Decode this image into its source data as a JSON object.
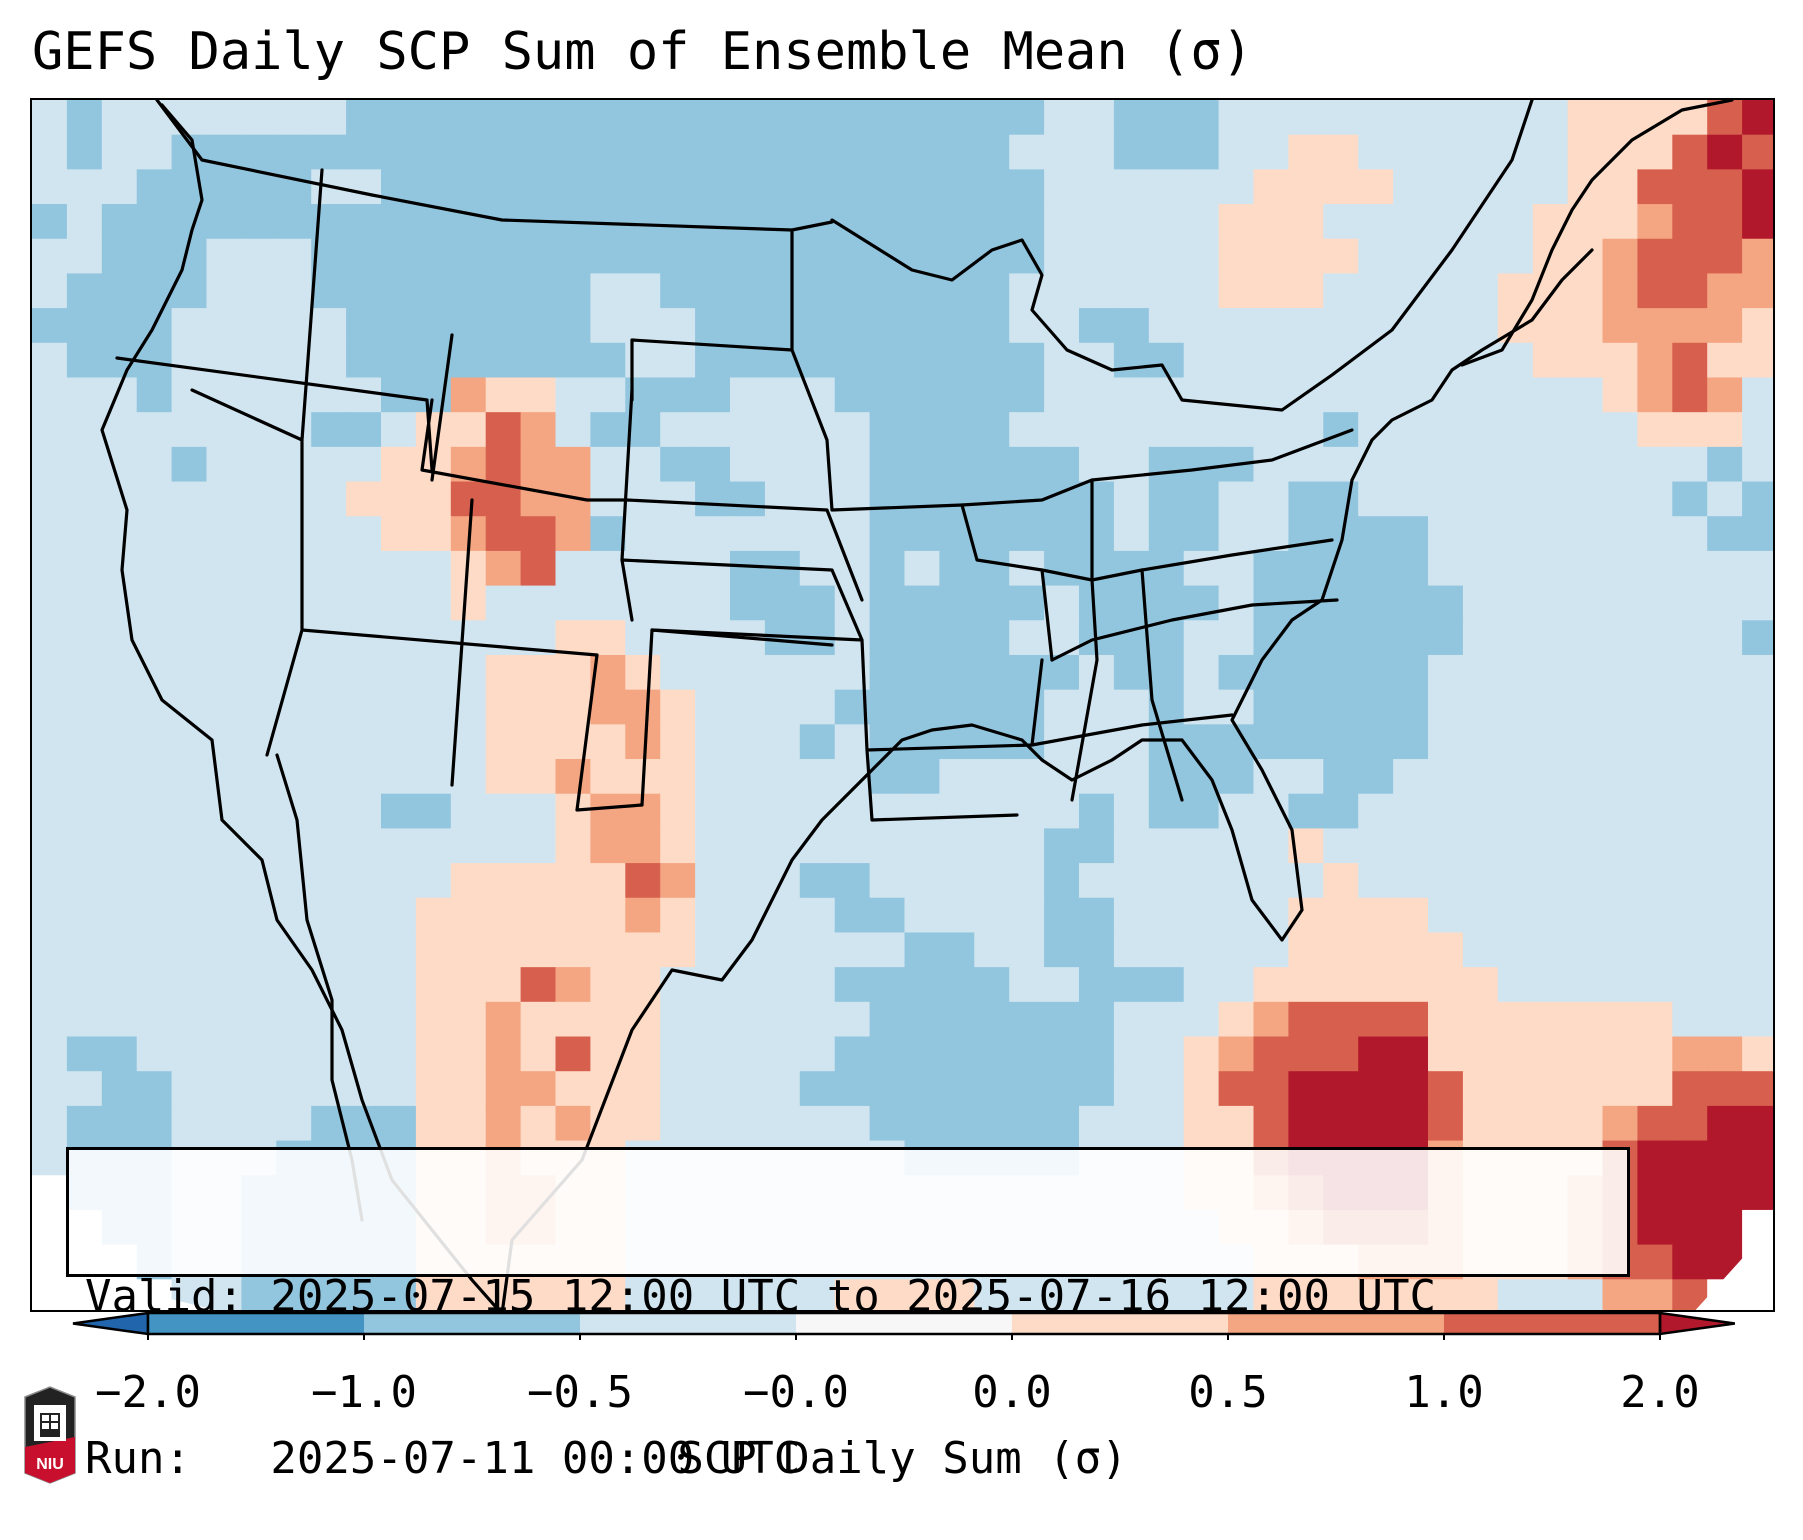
{
  "title": "GEFS Daily SCP Sum of Ensemble Mean (σ)",
  "info": {
    "valid_line": "Valid: 2025-07-15 12:00 UTC to 2025-07-16 12:00 UTC",
    "run_line": "Run:   2025-07-11 00:00 UTC"
  },
  "logo": {
    "icon": "niu-logo-icon",
    "text": "NIU",
    "colors": {
      "top": "#222222",
      "bottom": "#c8102e"
    }
  },
  "colors": {
    "outline": "#000000",
    "outside_domain": "#ffffff"
  },
  "chart_data": {
    "type": "heatmap",
    "title": "GEFS Daily SCP Sum of Ensemble Mean (σ)",
    "subtitle_lines": [
      "Valid: 2025-07-15 12:00 UTC to 2025-07-16 12:00 UTC",
      "Run:   2025-07-11 00:00 UTC"
    ],
    "region": "Continental United States (CONUS) with southern Canada, northern Mexico, Gulf of Mexico and western Atlantic",
    "colorbar": {
      "label": "SCP Daily Sum (σ)",
      "orientation": "horizontal",
      "placement": "bottom",
      "extend": "both",
      "tick_labels": [
        "−2.0",
        "−1.0",
        "−0.5",
        "−0.0",
        "0.0",
        "0.5",
        "1.0",
        "2.0"
      ],
      "bins": [
        {
          "range": "< -2.0",
          "color": "#2166ac"
        },
        {
          "range": "-2.0 to -1.0",
          "color": "#4393c3"
        },
        {
          "range": "-1.0 to -0.5",
          "color": "#92c5de"
        },
        {
          "range": "-0.5 to -0.0",
          "color": "#d1e5f0"
        },
        {
          "range": "-0.0 to 0.0",
          "color": "#f7f7f7"
        },
        {
          "range": "0.0 to 0.5",
          "color": "#fddbc7"
        },
        {
          "range": "0.5 to 1.0",
          "color": "#f4a582"
        },
        {
          "range": "1.0 to 2.0",
          "color": "#d6604d"
        },
        {
          "range": "> 2.0",
          "color": "#b2182b"
        }
      ]
    },
    "grid_note": "Approximate coarse raster of bin indices (0-8 map to colorbar bins, W = outside projection), rows top (north) to bottom (south), columns west to east",
    "grid": [
      "32333333322222222222222222222332223333333333555578",
      "32332222222222222222222222223332223355333333555787",
      "33322222332222222222222222222333333555533333557778",
      "23222222222222222222222222222333335553333335556778",
      "33222333222222222222222222222333335555333335567776",
      "32222333222222223322222222223333335553333355567766",
      "22223333322222223332222222223322333333333355566665",
      "32223333322222222332222222222332233333333335556755",
      "33323333332265533222333222222333333333333333356763",
      "33333333223557632233333322223333333332333333335553",
      "33332333335567663322333322222233222333333333333323",
      "33333333355577663332233322222223223322333333333232",
      "33333333335567762333333322222223223322223333333322",
      "33333333333356733333223323223222233222223333333333",
      "33333333333353333333222322222322223222222333333333",
      "33333333333333355333322322223322233222222333333332",
      "33333333333335556533333322222232232222223333333333",
      "33333333333335556653333222222333233222223333333333",
      "33333333333335555653332322222333222222223333333333",
      "33333333333335565553333322333333222332233333333333",
      "33333333332233356653333333333323223322333333333333",
      "33333333333333356653333333333223333353333333333333",
      "33333333333355555763332233333233333335333333333333",
      "33333333333555555653333223333223333355553333333333",
      "33333333333555555553333332233223333355555333333333",
      "33333333333555765533333222223322233555555533333333",
      "33333333333556555533333322222223335677775555555333",
      "32233333333556575533333222222223356777885555555665",
      "33223333333556655533332222222223357788887555555777",
      "32223333222556565533333322222233355788887555567788",
      "32223332222556555333333332222233355788886555578888",
      "W2223322222556655333333333333333355678886555678888",
      "WW22332222255665533333333333333333556777655567888W",
      "WWW2332222255555533333333333333333355566655567788W",
      "WWWW33222225555553333335555333333335555555333667WW"
    ]
  },
  "template_note": "State/coastline outlines are drawn as simplified decorative paths"
}
